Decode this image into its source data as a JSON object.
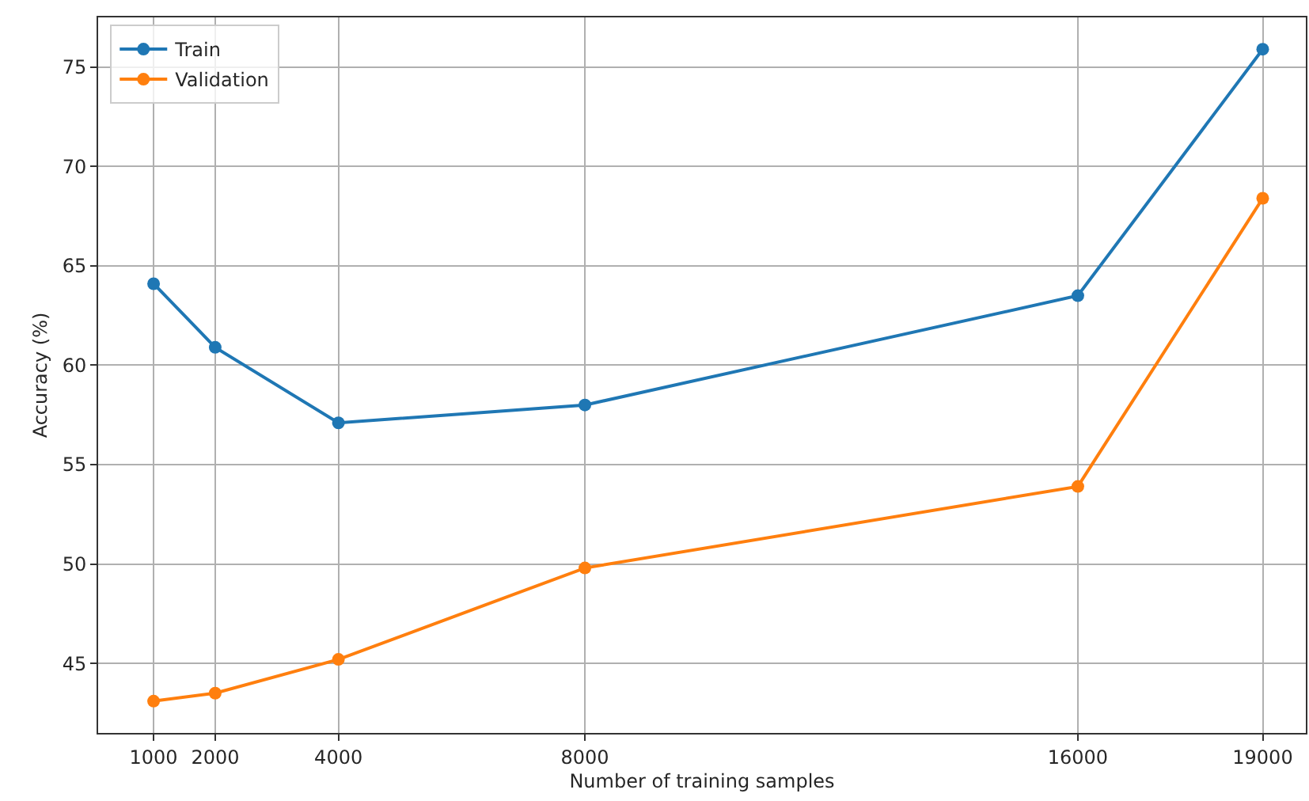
{
  "chart_data": {
    "type": "line",
    "xlabel": "Number of training samples",
    "ylabel": "Accuracy (%)",
    "x": [
      1000,
      2000,
      4000,
      8000,
      16000,
      19000
    ],
    "series": [
      {
        "name": "Train",
        "color": "#1f77b4",
        "values": [
          64.1,
          60.9,
          57.1,
          58.0,
          63.5,
          75.9
        ]
      },
      {
        "name": "Validation",
        "color": "#ff7f0e",
        "values": [
          43.1,
          43.5,
          45.2,
          49.8,
          53.9,
          68.4
        ]
      }
    ],
    "xlim": [
      100,
      19700
    ],
    "xticks": [
      1000,
      2000,
      4000,
      8000,
      16000,
      19000
    ],
    "ylim": [
      41.5,
      77.5
    ],
    "yticks": [
      45,
      50,
      55,
      60,
      65,
      70,
      75
    ],
    "grid": true,
    "legend": "top left",
    "marker": "circle",
    "line_style": "solid"
  }
}
